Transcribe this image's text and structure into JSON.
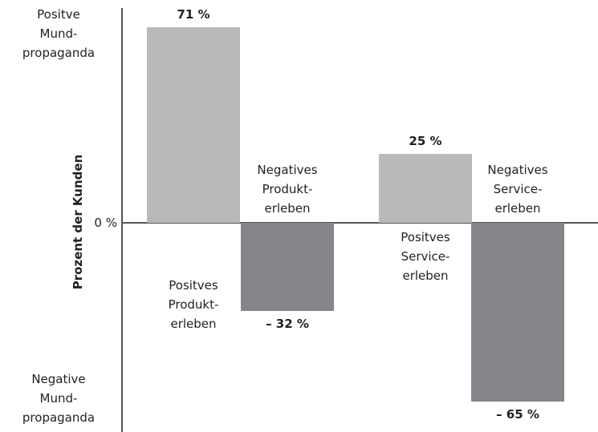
{
  "chart_data": {
    "type": "bar",
    "y_label": "Prozent der Kunden",
    "annotations": [
      "Positve\nMund-\npropaganda",
      "Negative\nMund-\npropaganda"
    ],
    "categories": [
      "Positves\nProdukt-\nerleben",
      "Negatives\nProdukt-\nerleben",
      "Positves\nService-\nerleben",
      "Negatives\nService-\nerleben"
    ],
    "values": [
      71,
      -32,
      25,
      -65
    ],
    "value_labels": [
      "71 %",
      "– 32 %",
      "25 %",
      "– 65 %"
    ],
    "colors": [
      "#b9b9bb",
      "#858689",
      "#b9b9bb",
      "#858689"
    ],
    "ylim": [
      -76,
      78
    ],
    "yticks": [
      {
        "value": 0,
        "label": "0 %"
      }
    ]
  }
}
